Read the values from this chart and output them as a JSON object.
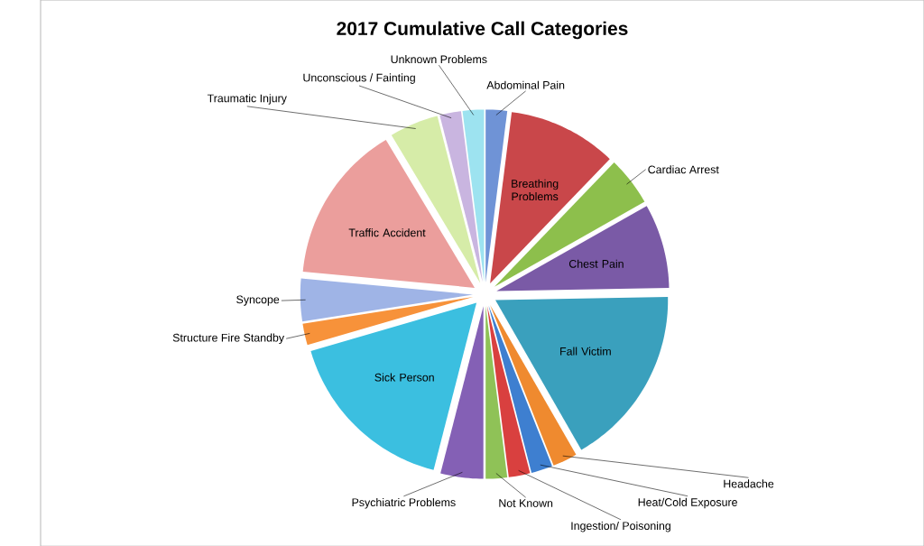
{
  "chart_data": {
    "type": "pie",
    "title": "2017 Cumulative Call Categories",
    "categories": [
      "Abdominal Pain",
      "Breathing Problems",
      "Cardiac Arrest",
      "Chest Pain",
      "Fall Victim",
      "Headache",
      "Heat/Cold Exposure",
      "Ingestion/ Poisoning",
      "Not Known",
      "Psychiatric Problems",
      "Sick Person",
      "Structure Fire Standby",
      "Syncope",
      "Traffic Accident",
      "Traumatic Injury",
      "Unconscious / Fainting",
      "Unknown Problems"
    ],
    "values": [
      2.0,
      10.2,
      4.6,
      7.9,
      17.0,
      2.3,
      2.0,
      2.0,
      2.0,
      4.0,
      16.5,
      2.0,
      4.0,
      14.9,
      4.6,
      2.0,
      2.0
    ],
    "colors": [
      "#6f93d6",
      "#c9474a",
      "#8dbf4c",
      "#7a5aa6",
      "#3aa0bd",
      "#ef8a2f",
      "#3e7fd0",
      "#d9403f",
      "#8fc257",
      "#8460b5",
      "#3bbfe0",
      "#f7923a",
      "#9fb4e6",
      "#eb9e9c",
      "#d6eca8",
      "#c9b5e0",
      "#9de3f0"
    ]
  }
}
